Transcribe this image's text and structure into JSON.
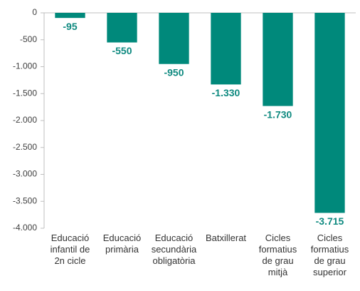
{
  "chart_data": {
    "type": "bar",
    "categories": [
      "Educació infantil de 2n cicle",
      "Educació primària",
      "Educació secundària obligatòria",
      "Batxillerat",
      "Cicles formatius de grau mitjà",
      "Cicles formatius de grau superior"
    ],
    "values": [
      -95,
      -550,
      -950,
      -1330,
      -1730,
      -3715
    ],
    "value_labels": [
      "-95",
      "-550",
      "-950",
      "-1.330",
      "-1.730",
      "-3.715"
    ],
    "color": "#00897b",
    "ylim": [
      -4000,
      0
    ],
    "yticks": [
      0,
      -500,
      {
        "value": -1000,
        "label": "-1.000"
      },
      {
        "value": -1500,
        "label": "-1.500"
      },
      {
        "value": -2000,
        "label": "-2.000"
      },
      {
        "value": -2500,
        "label": "-2.500"
      },
      {
        "value": -3000,
        "label": "-3.000"
      },
      {
        "value": -3500,
        "label": "-3.500"
      },
      {
        "value": -4000,
        "label": "-4.000"
      }
    ],
    "grid": false
  }
}
